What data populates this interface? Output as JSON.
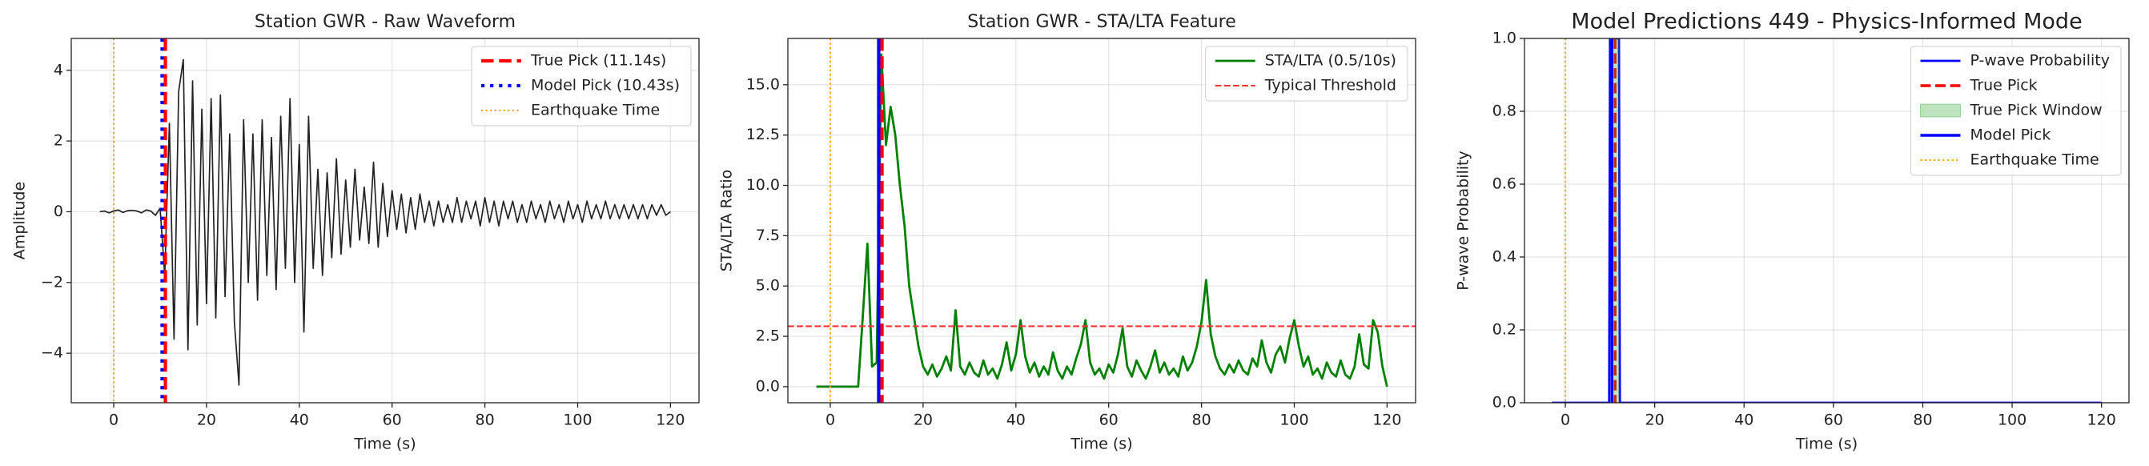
{
  "chart_data": [
    {
      "type": "line",
      "title": "Station GWR - Raw Waveform",
      "xlabel": "Time (s)",
      "ylabel": "Amplitude",
      "xlim": [
        -9.15,
        126.15
      ],
      "ylim": [
        -5.4,
        4.9
      ],
      "xticks": [
        0,
        20,
        40,
        60,
        80,
        100,
        120
      ],
      "yticks": [
        {
          "value": -4,
          "label": "−4"
        },
        {
          "value": -2,
          "label": "−2"
        },
        0,
        2,
        4
      ],
      "grid": true,
      "legend": "upper right",
      "layers": [
        {
          "kind": "series",
          "color": "#222222",
          "style": "solid",
          "linewidth": 1.2,
          "x": [
            -3,
            -2,
            -1,
            0,
            1,
            2,
            3,
            4,
            5,
            6,
            7,
            8,
            9,
            10,
            11,
            12,
            13,
            14,
            15,
            16,
            17,
            18,
            19,
            20,
            21,
            22,
            23,
            24,
            25,
            26,
            27,
            28,
            29,
            30,
            31,
            32,
            33,
            34,
            35,
            36,
            37,
            38,
            39,
            40,
            41,
            42,
            43,
            44,
            45,
            46,
            47,
            48,
            49,
            50,
            51,
            52,
            53,
            54,
            55,
            56,
            57,
            58,
            59,
            60,
            61,
            62,
            63,
            64,
            65,
            66,
            67,
            68,
            69,
            70,
            71,
            72,
            73,
            74,
            75,
            76,
            77,
            78,
            79,
            80,
            81,
            82,
            83,
            84,
            85,
            86,
            87,
            88,
            89,
            90,
            91,
            92,
            93,
            94,
            95,
            96,
            97,
            98,
            99,
            100,
            101,
            102,
            103,
            104,
            105,
            106,
            107,
            108,
            109,
            110,
            111,
            112,
            113,
            114,
            115,
            116,
            117,
            118,
            119,
            120
          ],
          "values": [
            0,
            0.02,
            -0.03,
            0.02,
            0.05,
            -0.02,
            0.03,
            0.04,
            0.02,
            -0.03,
            0.05,
            0.02,
            -0.1,
            0.1,
            -1.8,
            2.5,
            -3.6,
            3.4,
            4.3,
            -3.9,
            3.7,
            -3.2,
            2.9,
            -2.6,
            3.2,
            -3.0,
            3.3,
            -2.4,
            2.2,
            -3.1,
            -4.9,
            2.6,
            -2.0,
            2.2,
            -2.5,
            2.6,
            -1.8,
            2.1,
            -2.2,
            2.7,
            -1.6,
            3.2,
            -2.0,
            1.9,
            -3.4,
            2.7,
            -1.6,
            1.2,
            -1.8,
            1.1,
            -1.3,
            1.5,
            -1.2,
            0.9,
            -1.0,
            1.2,
            -0.8,
            0.7,
            -0.9,
            1.4,
            -1.0,
            0.8,
            -0.7,
            0.6,
            -0.5,
            0.5,
            -0.6,
            0.4,
            -0.5,
            0.5,
            -0.3,
            0.3,
            -0.4,
            0.3,
            -0.3,
            0.2,
            -0.3,
            0.4,
            -0.3,
            0.3,
            -0.2,
            0.3,
            -0.4,
            0.4,
            -0.3,
            0.3,
            -0.4,
            0.3,
            -0.2,
            0.3,
            -0.3,
            0.2,
            -0.3,
            0.3,
            -0.2,
            0.2,
            -0.3,
            0.3,
            -0.2,
            0.2,
            -0.3,
            0.3,
            -0.2,
            0.2,
            -0.3,
            0.3,
            -0.2,
            0.2,
            -0.2,
            0.3,
            -0.2,
            0.2,
            -0.2,
            0.2,
            -0.2,
            0.2,
            -0.2,
            0.2,
            -0.2,
            0.2,
            -0.1,
            0.2,
            -0.1,
            0.0
          ]
        },
        {
          "kind": "vline",
          "name": "True Pick (11.14s)",
          "x": 11.14,
          "color": "#ff0000",
          "style": "dashed",
          "linewidth": 3
        },
        {
          "kind": "vline",
          "name": "Model Pick (10.43s)",
          "x": 10.43,
          "color": "#0000ff",
          "style": "dotted",
          "linewidth": 3
        },
        {
          "kind": "vline",
          "name": "Earthquake Time",
          "x": 0,
          "color": "#ffa500",
          "style": "dotted",
          "linewidth": 1.5
        }
      ]
    },
    {
      "type": "line",
      "title": "Station GWR - STA/LTA Feature",
      "xlabel": "Time (s)",
      "ylabel": "STA/LTA Ratio",
      "xlim": [
        -9.15,
        126.15
      ],
      "ylim": [
        -0.8,
        17.3
      ],
      "xticks": [
        0,
        20,
        40,
        60,
        80,
        100,
        120
      ],
      "yticks": [
        {
          "value": 0,
          "label": "0.0"
        },
        {
          "value": 2.5,
          "label": "2.5"
        },
        {
          "value": 5,
          "label": "5.0"
        },
        {
          "value": 7.5,
          "label": "7.5"
        },
        {
          "value": 10,
          "label": "10.0"
        },
        {
          "value": 12.5,
          "label": "12.5"
        },
        {
          "value": 15,
          "label": "15.0"
        }
      ],
      "grid": true,
      "legend": "upper right",
      "layers": [
        {
          "kind": "series",
          "name": "STA/LTA (0.5/10s)",
          "color": "#008000",
          "style": "solid",
          "linewidth": 2,
          "x": [
            -3,
            -2,
            -1,
            0,
            1,
            2,
            3,
            4,
            5,
            6,
            7,
            8,
            9,
            10,
            11,
            12,
            13,
            14,
            15,
            16,
            17,
            18,
            19,
            20,
            21,
            22,
            23,
            24,
            25,
            26,
            27,
            28,
            29,
            30,
            31,
            32,
            33,
            34,
            35,
            36,
            37,
            38,
            39,
            40,
            41,
            42,
            43,
            44,
            45,
            46,
            47,
            48,
            49,
            50,
            51,
            52,
            53,
            54,
            55,
            56,
            57,
            58,
            59,
            60,
            61,
            62,
            63,
            64,
            65,
            66,
            67,
            68,
            69,
            70,
            71,
            72,
            73,
            74,
            75,
            76,
            77,
            78,
            79,
            80,
            81,
            82,
            83,
            84,
            85,
            86,
            87,
            88,
            89,
            90,
            91,
            92,
            93,
            94,
            95,
            96,
            97,
            98,
            99,
            100,
            101,
            102,
            103,
            104,
            105,
            106,
            107,
            108,
            109,
            110,
            111,
            112,
            113,
            114,
            115,
            116,
            117,
            118,
            119,
            120
          ],
          "values": [
            0,
            0,
            0,
            0,
            0,
            0,
            0,
            0,
            0,
            0,
            3.5,
            7.1,
            1.0,
            1.2,
            16.5,
            12.0,
            13.9,
            12.5,
            10.0,
            8.0,
            5.0,
            3.5,
            2.0,
            1.0,
            0.6,
            1.1,
            0.5,
            0.9,
            1.5,
            0.8,
            3.8,
            1.0,
            0.6,
            1.2,
            0.7,
            0.5,
            1.3,
            0.6,
            0.9,
            0.4,
            1.1,
            2.2,
            0.8,
            1.6,
            3.3,
            1.5,
            0.7,
            1.2,
            0.5,
            1.0,
            0.6,
            1.7,
            0.8,
            0.4,
            1.0,
            0.6,
            1.4,
            2.1,
            3.3,
            1.2,
            0.6,
            0.9,
            0.4,
            1.1,
            0.7,
            1.6,
            2.9,
            1.0,
            0.5,
            1.3,
            0.8,
            0.4,
            1.0,
            1.8,
            0.7,
            1.2,
            0.6,
            0.9,
            0.5,
            1.5,
            0.8,
            1.2,
            2.0,
            3.2,
            5.3,
            2.6,
            1.5,
            0.9,
            0.6,
            1.1,
            0.7,
            1.3,
            0.8,
            0.6,
            1.4,
            1.0,
            2.3,
            1.2,
            0.7,
            1.6,
            2.0,
            1.2,
            2.4,
            3.3,
            2.0,
            1.0,
            1.5,
            0.6,
            0.9,
            0.4,
            1.2,
            0.7,
            0.5,
            1.3,
            0.6,
            0.4,
            1.0,
            2.6,
            1.1,
            0.9,
            3.3,
            2.7,
            1.0,
            0.0
          ]
        },
        {
          "kind": "hline",
          "name": "Typical Threshold",
          "y": 3,
          "color": "#ff3333",
          "style": "dashed",
          "linewidth": 1.5
        },
        {
          "kind": "vline",
          "x": 10.43,
          "color": "#0000ff",
          "style": "solid",
          "linewidth": 3
        },
        {
          "kind": "vline",
          "x": 11.14,
          "color": "#ff0000",
          "style": "dashed",
          "linewidth": 3
        },
        {
          "kind": "vline",
          "x": 0,
          "color": "#ffa500",
          "style": "dotted",
          "linewidth": 1.5
        }
      ]
    },
    {
      "type": "line",
      "title": "Model Predictions 449 - Physics-Informed Mode",
      "xlabel": "Time (s)",
      "ylabel": "P-wave Probability",
      "xlim": [
        -9.15,
        126.15
      ],
      "ylim": [
        0,
        1
      ],
      "xticks": [
        0,
        20,
        40,
        60,
        80,
        100,
        120
      ],
      "yticks": [
        {
          "value": 0,
          "label": "0.0"
        },
        {
          "value": 0.2,
          "label": "0.2"
        },
        {
          "value": 0.4,
          "label": "0.4"
        },
        {
          "value": 0.6,
          "label": "0.6"
        },
        {
          "value": 0.8,
          "label": "0.8"
        },
        {
          "value": 1,
          "label": "1.0"
        }
      ],
      "grid": true,
      "legend": "upper right",
      "layers": [
        {
          "kind": "series",
          "name": "P-wave Probability",
          "color": "#0000ff",
          "style": "solid",
          "linewidth": 2,
          "x": [
            -3,
            9.8,
            10,
            12,
            12.2,
            120
          ],
          "values": [
            0,
            0,
            1,
            1,
            0,
            0
          ]
        },
        {
          "kind": "vline",
          "name": "True Pick",
          "x": 11.14,
          "color": "#ff0000",
          "style": "dashed",
          "linewidth": 2.5
        },
        {
          "kind": "span",
          "name": "True Pick Window",
          "x": [
            10.14,
            12.14
          ],
          "color": "#2ca02c"
        },
        {
          "kind": "vline",
          "name": "Model Pick",
          "x": 10.43,
          "color": "#0000ff",
          "style": "solid",
          "linewidth": 2.5
        },
        {
          "kind": "vline",
          "name": "Earthquake Time",
          "x": 0,
          "color": "#ffa500",
          "style": "dotted",
          "linewidth": 1.5
        }
      ]
    }
  ]
}
